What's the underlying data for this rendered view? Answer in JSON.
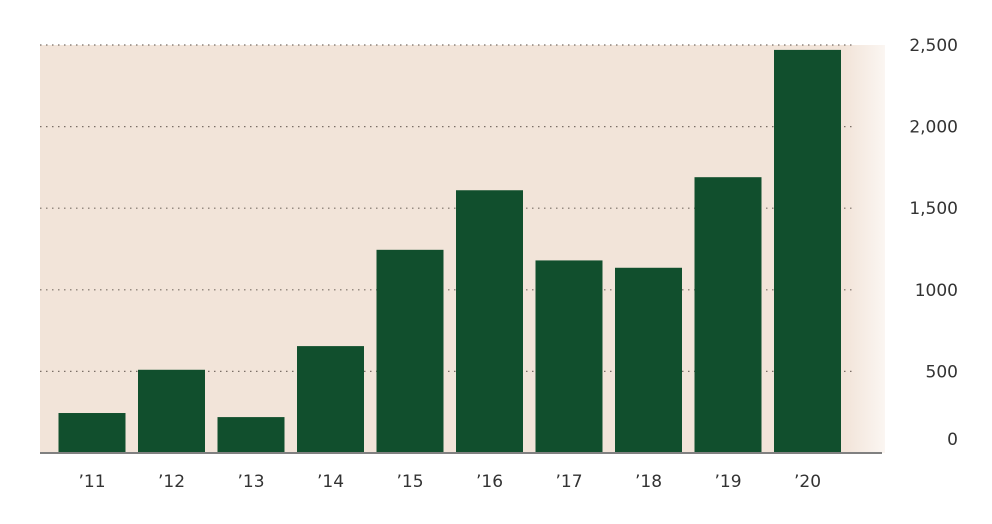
{
  "chart_data": {
    "type": "bar",
    "title": "",
    "xlabel": "",
    "ylabel": "",
    "categories": [
      "’11",
      "’12",
      "’13",
      "’14",
      "’15",
      "’16",
      "’17",
      "’18",
      "’19",
      "’20"
    ],
    "values": [
      245,
      510,
      220,
      655,
      1245,
      1610,
      1180,
      1135,
      1690,
      2470
    ],
    "ylim": [
      0,
      2500
    ],
    "y_ticks": [
      0,
      500,
      1000,
      1500,
      2000,
      2500
    ],
    "y_tick_labels": [
      "0",
      "500",
      "1000",
      "1,500",
      "2,000",
      "2,500"
    ],
    "y_axis_position": "right",
    "grid": true,
    "grid_style": "dotted",
    "legend": "none",
    "colors": {
      "bar": "#114f2d",
      "plot_background": "#f2e4d9",
      "plot_background_fade": "#fbf6f2",
      "grid": "#7a6e66",
      "baseline": "#808080",
      "text": "#333333"
    }
  }
}
